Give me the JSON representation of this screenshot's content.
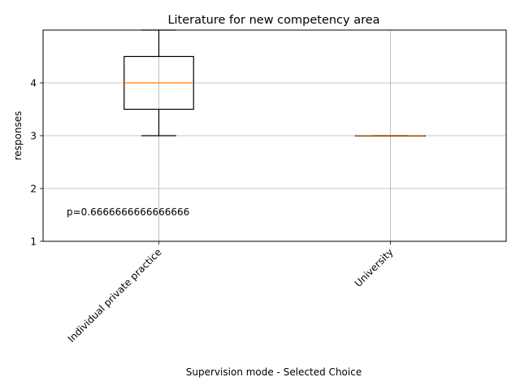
{
  "chart_data": {
    "type": "box",
    "title": "Literature for new competency area",
    "xlabel": "Supervision mode - Selected Choice",
    "ylabel": "responses",
    "categories": [
      "Individual private practice",
      "University"
    ],
    "boxes": [
      {
        "category": "Individual private practice",
        "whisker_low": 3,
        "q1": 3.5,
        "median": 4,
        "q3": 4.5,
        "whisker_high": 5
      },
      {
        "category": "University",
        "whisker_low": 3,
        "q1": 3,
        "median": 3,
        "q3": 3,
        "whisker_high": 3
      }
    ],
    "ylim": [
      1,
      5
    ],
    "yticks": [
      1,
      2,
      3,
      4
    ],
    "grid": true,
    "annotation": "p=0.6666666666666666",
    "colors": {
      "box": "#000000",
      "median": "#ff7f0e",
      "grid": "#b0b0b0"
    }
  }
}
